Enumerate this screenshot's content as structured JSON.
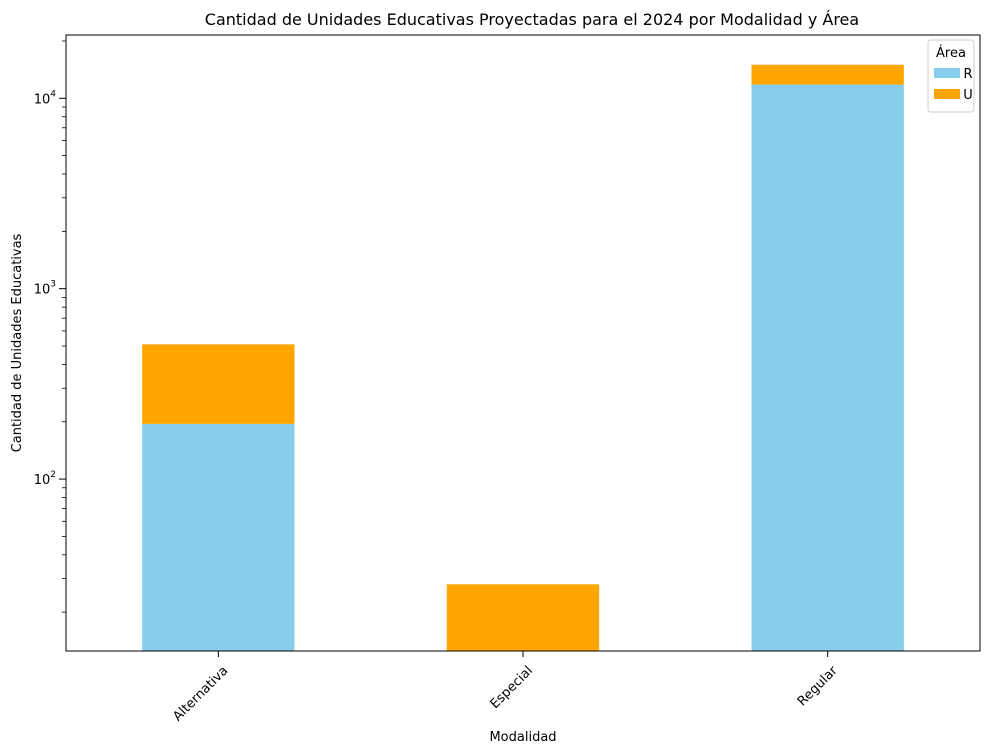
{
  "chart_data": {
    "type": "bar",
    "stacked": true,
    "title": "Cantidad de Unidades Educativas Proyectadas para el 2024 por Modalidad y Área",
    "xlabel": "Modalidad",
    "ylabel": "Cantidad de Unidades Educativas",
    "yscale": "log",
    "ylim": [
      12.5,
      21500
    ],
    "categories": [
      "Alternativa",
      "Especial",
      "Regular"
    ],
    "series": [
      {
        "name": "R",
        "color": "#87ceeb",
        "values": [
          195,
          0,
          11800
        ]
      },
      {
        "name": "U",
        "color": "#ffa500",
        "values": [
          315,
          28,
          3200
        ]
      }
    ],
    "legend": {
      "title": "Área",
      "position": "top-right"
    },
    "y_ticks": [
      {
        "value": 100,
        "base": "10",
        "exp": "2"
      },
      {
        "value": 1000,
        "base": "10",
        "exp": "3"
      },
      {
        "value": 10000,
        "base": "10",
        "exp": "4"
      }
    ],
    "grid": false
  }
}
